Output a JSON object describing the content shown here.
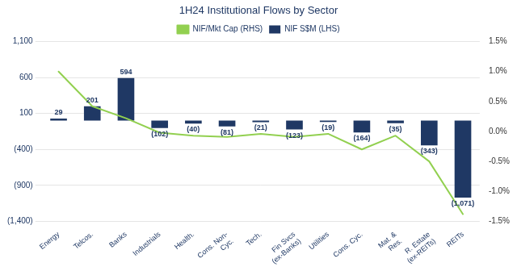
{
  "chart_data": {
    "type": "bar",
    "title": "1H24 Institutional Flows by Sector",
    "categories": [
      "Energy",
      "Telcos.",
      "Banks",
      "Industrials",
      "Health.",
      "Cons. Non-\nCyc.",
      "Tech.",
      "Fin Svcs\n(ex-Banks)",
      "Utilities",
      "Cons. Cyc.",
      "Mat. &\nRes.",
      "R. Estate\n(ex-REITs)",
      "REITs"
    ],
    "series": [
      {
        "name": "NIF S$M (LHS)",
        "type": "bar",
        "color": "#1f3864",
        "values": [
          29,
          201,
          594,
          -102,
          -40,
          -81,
          -21,
          -123,
          -19,
          -164,
          -35,
          -343,
          -1071
        ],
        "value_labels": [
          "29",
          "201",
          "594",
          "(102)",
          "(40)",
          "(81)",
          "(21)",
          "(123)",
          "(19)",
          "(164)",
          "(35)",
          "(343)",
          "(1,071)"
        ],
        "data_labels": true
      },
      {
        "name": "NIF/Mkt Cap (RHS)",
        "type": "line",
        "color": "#92d050",
        "axis": "y2",
        "values": [
          1.0,
          0.42,
          0.22,
          -0.02,
          -0.07,
          -0.09,
          -0.04,
          -0.09,
          -0.04,
          -0.3,
          -0.07,
          -0.5,
          -1.38
        ]
      }
    ],
    "ylim": [
      -1400,
      1100
    ],
    "yticks": [
      {
        "value": -1400,
        "label": "(1,400)"
      },
      {
        "value": -900,
        "label": "(900)"
      },
      {
        "value": -400,
        "label": "(400)"
      },
      100,
      600,
      {
        "value": 1100,
        "label": "1,100"
      }
    ],
    "y2lim": [
      -1.5,
      1.5
    ],
    "y2ticks": [
      {
        "value": -1.5,
        "label": "-1.5%"
      },
      {
        "value": -1.0,
        "label": "-1.0%"
      },
      {
        "value": -0.5,
        "label": "-0.5%"
      },
      {
        "value": 0.0,
        "label": "0.0%"
      },
      {
        "value": 0.5,
        "label": "0.5%"
      },
      {
        "value": 1.0,
        "label": "1.0%"
      },
      {
        "value": 1.5,
        "label": "1.5%"
      }
    ],
    "grid": true,
    "legend": "top"
  }
}
